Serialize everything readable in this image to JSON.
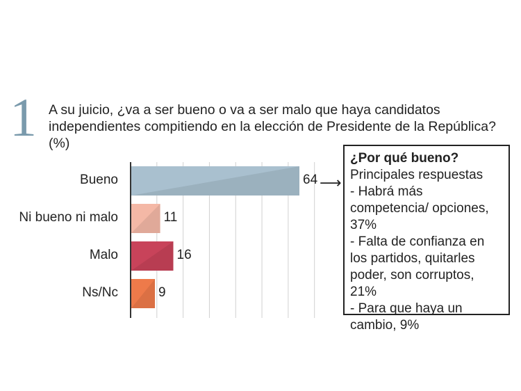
{
  "question_number": "1",
  "question_text": "A su juicio, ¿va a ser bueno o va a ser malo que haya candidatos independientes compitiendo en la elección de Presidente de la República? (%)",
  "callout": {
    "title": "¿Por qué bueno?",
    "subtitle": "Principales respuestas",
    "items": [
      "- Habrá más competencia/ opciones, 37%",
      "- Falta de confianza en los partidos, quitarles poder, son corruptos, 21%",
      "- Para que haya un cambio, 9%"
    ]
  },
  "chart_data": {
    "type": "bar",
    "orientation": "horizontal",
    "title": "",
    "categories": [
      "Bueno",
      "Ni bueno ni malo",
      "Malo",
      "Ns/Nc"
    ],
    "values": [
      64,
      11,
      16,
      9
    ],
    "colors": [
      "#a9c0cf",
      "#f4b8a6",
      "#c8435a",
      "#ee7a4a"
    ],
    "xlim": [
      0,
      70
    ],
    "unit": "%",
    "grid": true
  }
}
